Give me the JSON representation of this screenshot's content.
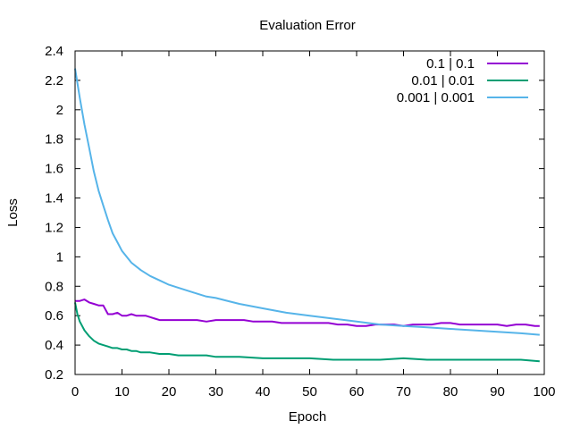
{
  "chart_data": {
    "type": "line",
    "title": "Evaluation Error",
    "xlabel": "Epoch",
    "ylabel": "Loss",
    "xlim": [
      0,
      100
    ],
    "ylim": [
      0.2,
      2.4
    ],
    "x_ticks": [
      "0",
      "10",
      "20",
      "30",
      "40",
      "50",
      "60",
      "70",
      "80",
      "90",
      "100"
    ],
    "y_ticks": [
      "0.2",
      "0.4",
      "0.6",
      "0.8",
      "1",
      "1.2",
      "1.4",
      "1.6",
      "1.8",
      "2",
      "2.2",
      "2.4"
    ],
    "grid": false,
    "legend_position": "top-right",
    "series": [
      {
        "name": "0.1 | 0.1",
        "color": "#9400d3",
        "x": [
          0,
          1,
          2,
          3,
          4,
          5,
          6,
          7,
          8,
          9,
          10,
          11,
          12,
          13,
          14,
          15,
          16,
          17,
          18,
          19,
          20,
          22,
          24,
          26,
          28,
          30,
          32,
          34,
          36,
          38,
          40,
          42,
          44,
          46,
          48,
          50,
          52,
          54,
          56,
          58,
          60,
          62,
          64,
          66,
          68,
          70,
          72,
          74,
          76,
          78,
          80,
          82,
          84,
          86,
          88,
          90,
          92,
          94,
          96,
          98,
          99
        ],
        "y": [
          0.7,
          0.7,
          0.71,
          0.69,
          0.68,
          0.67,
          0.67,
          0.61,
          0.61,
          0.62,
          0.6,
          0.6,
          0.61,
          0.6,
          0.6,
          0.6,
          0.59,
          0.58,
          0.57,
          0.57,
          0.57,
          0.57,
          0.57,
          0.57,
          0.56,
          0.57,
          0.57,
          0.57,
          0.57,
          0.56,
          0.56,
          0.56,
          0.55,
          0.55,
          0.55,
          0.55,
          0.55,
          0.55,
          0.54,
          0.54,
          0.53,
          0.53,
          0.54,
          0.54,
          0.54,
          0.53,
          0.54,
          0.54,
          0.54,
          0.55,
          0.55,
          0.54,
          0.54,
          0.54,
          0.54,
          0.54,
          0.53,
          0.54,
          0.54,
          0.53,
          0.53
        ]
      },
      {
        "name": "0.01 | 0.01",
        "color": "#009e73",
        "x": [
          0,
          0.5,
          1,
          1.5,
          2,
          3,
          4,
          5,
          6,
          7,
          8,
          9,
          10,
          11,
          12,
          13,
          14,
          15,
          16,
          18,
          20,
          22,
          25,
          28,
          30,
          35,
          40,
          45,
          50,
          55,
          60,
          65,
          70,
          75,
          80,
          85,
          90,
          95,
          99
        ],
        "y": [
          0.69,
          0.61,
          0.56,
          0.53,
          0.5,
          0.46,
          0.43,
          0.41,
          0.4,
          0.39,
          0.38,
          0.38,
          0.37,
          0.37,
          0.36,
          0.36,
          0.35,
          0.35,
          0.35,
          0.34,
          0.34,
          0.33,
          0.33,
          0.33,
          0.32,
          0.32,
          0.31,
          0.31,
          0.31,
          0.3,
          0.3,
          0.3,
          0.31,
          0.3,
          0.3,
          0.3,
          0.3,
          0.3,
          0.29
        ]
      },
      {
        "name": "0.001 | 0.001",
        "color": "#56b4e9",
        "x": [
          0,
          1,
          2,
          3,
          4,
          5,
          6,
          7,
          8,
          9,
          10,
          12,
          14,
          16,
          18,
          20,
          22,
          25,
          28,
          30,
          35,
          40,
          45,
          50,
          55,
          60,
          65,
          70,
          75,
          80,
          85,
          90,
          95,
          99
        ],
        "y": [
          2.28,
          2.08,
          1.9,
          1.74,
          1.58,
          1.45,
          1.35,
          1.25,
          1.16,
          1.1,
          1.04,
          0.96,
          0.91,
          0.87,
          0.84,
          0.81,
          0.79,
          0.76,
          0.73,
          0.72,
          0.68,
          0.65,
          0.62,
          0.6,
          0.58,
          0.56,
          0.54,
          0.53,
          0.52,
          0.51,
          0.5,
          0.49,
          0.48,
          0.47
        ]
      }
    ]
  }
}
